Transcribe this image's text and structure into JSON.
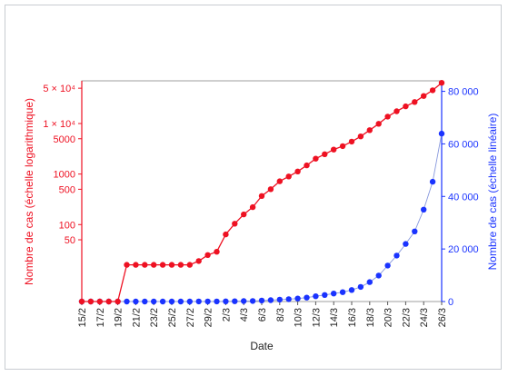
{
  "chart_data": {
    "type": "line",
    "xlabel": "Date",
    "ylabel_left": "Nombre de cas (échelle logarithmique)",
    "ylabel_right": "Nombre de cas (échelle linéaire)",
    "x_tick_labels": [
      "15/2",
      "17/2",
      "19/2",
      "21/2",
      "23/2",
      "25/2",
      "27/2",
      "29/2",
      "2/3",
      "4/3",
      "6/3",
      "8/3",
      "10/3",
      "12/3",
      "14/3",
      "16/3",
      "18/3",
      "20/3",
      "22/3",
      "24/3",
      "26/3"
    ],
    "left_ticks": [
      {
        "value": 50000,
        "label": "5 × 10⁴"
      },
      {
        "value": 10000,
        "label": "1 × 10⁴"
      },
      {
        "value": 5000,
        "label": "5000"
      },
      {
        "value": 1000,
        "label": "1000"
      },
      {
        "value": 500,
        "label": "500"
      },
      {
        "value": 100,
        "label": "100"
      },
      {
        "value": 50,
        "label": "50"
      }
    ],
    "right_ticks": [
      {
        "value": 0,
        "label": "0"
      },
      {
        "value": 20000,
        "label": "20 000"
      },
      {
        "value": 40000,
        "label": "40 000"
      },
      {
        "value": 60000,
        "label": "60 000"
      },
      {
        "value": 80000,
        "label": "80 000"
      }
    ],
    "left_scale": "log",
    "left_ylim": [
      3,
      70000
    ],
    "right_ylim": [
      0,
      84000
    ],
    "colors": {
      "log_series": "#ee1122",
      "linear_series": "#1a33ff",
      "linear_line": "#8899dd"
    },
    "dates": [
      "15/2",
      "16/2",
      "17/2",
      "18/2",
      "19/2",
      "20/2",
      "21/2",
      "22/2",
      "23/2",
      "24/2",
      "25/2",
      "26/2",
      "27/2",
      "28/2",
      "29/2",
      "1/3",
      "2/3",
      "3/3",
      "4/3",
      "5/3",
      "6/3",
      "7/3",
      "8/3",
      "9/3",
      "10/3",
      "11/3",
      "12/3",
      "13/3",
      "14/3",
      "15/3",
      "16/3",
      "17/3",
      "18/3",
      "19/3",
      "20/3",
      "21/3",
      "22/3",
      "23/3",
      "24/3",
      "25/3",
      "26/3"
    ],
    "series": [
      {
        "axis": "left",
        "values": [
          3,
          3,
          3,
          3,
          3,
          16,
          16,
          16,
          16,
          16,
          16,
          16,
          16,
          19,
          25,
          29,
          64,
          104,
          159,
          221,
          368,
          502,
          719,
          896,
          1126,
          1485,
          2018,
          2474,
          3052,
          3574,
          4400,
          5570,
          7410,
          9900,
          13700,
          17500,
          21900,
          26700,
          35000,
          45600,
          63900
        ]
      },
      {
        "axis": "right",
        "values": [
          3,
          3,
          3,
          3,
          3,
          16,
          16,
          16,
          16,
          16,
          16,
          16,
          16,
          19,
          25,
          29,
          64,
          104,
          159,
          221,
          368,
          502,
          719,
          896,
          1126,
          1485,
          2018,
          2474,
          3052,
          3574,
          4400,
          5570,
          7410,
          9900,
          13700,
          17500,
          21900,
          26700,
          35000,
          45600,
          63900
        ]
      }
    ]
  }
}
